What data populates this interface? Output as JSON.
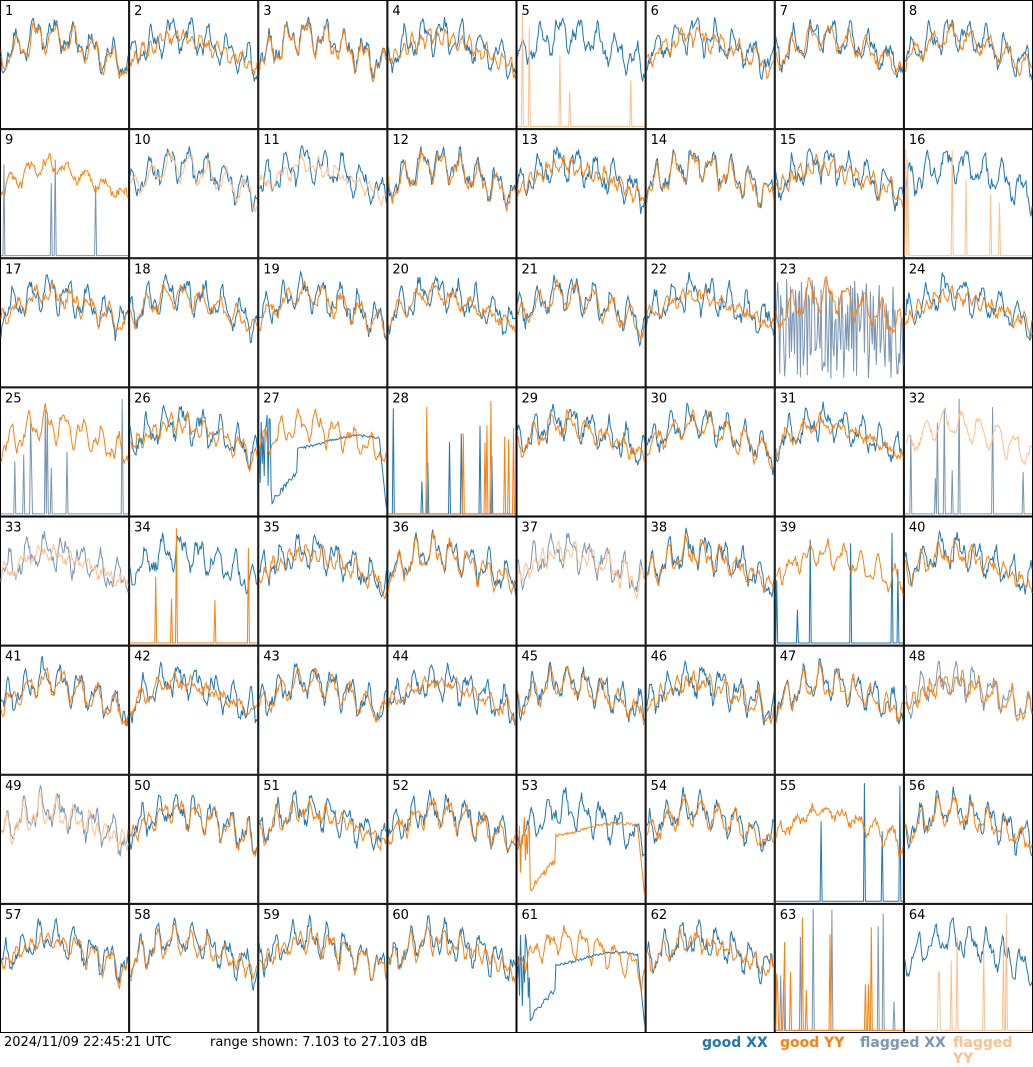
{
  "footer": {
    "timestamp": "2024/11/09 22:45:21 UTC",
    "range_text": "range shown: 7.103 to 27.103 dB"
  },
  "legend": [
    {
      "label": "good XX",
      "color": "#1f77b4"
    },
    {
      "label": "good YY",
      "color": "#ff7f0e"
    },
    {
      "label": "flagged XX",
      "color": "#7a96b3"
    },
    {
      "label": "flagged YY",
      "color": "#ffc08f"
    }
  ],
  "chart_data": {
    "type": "line",
    "layout": "8x8 small multiples",
    "y_range_db": [
      7.103,
      27.103
    ],
    "grid": false,
    "legend_placement": "bottom-right",
    "panels": [
      {
        "id": 1,
        "x": "good",
        "y": "good",
        "kind": "normal"
      },
      {
        "id": 2,
        "x": "good",
        "y": "good",
        "kind": "normal"
      },
      {
        "id": 3,
        "x": "good",
        "y": "good",
        "kind": "normal"
      },
      {
        "id": 4,
        "x": "good",
        "y": "good",
        "kind": "normal"
      },
      {
        "id": 5,
        "x": "good",
        "y": "flagged",
        "kind": "y-spiky"
      },
      {
        "id": 6,
        "x": "good",
        "y": "good",
        "kind": "normal"
      },
      {
        "id": 7,
        "x": "good",
        "y": "good",
        "kind": "normal"
      },
      {
        "id": 8,
        "x": "good",
        "y": "good",
        "kind": "normal"
      },
      {
        "id": 9,
        "x": "flagged",
        "y": "good",
        "kind": "x-spiky"
      },
      {
        "id": 10,
        "x": "good",
        "y": "flagged",
        "kind": "normal"
      },
      {
        "id": 11,
        "x": "good",
        "y": "flagged",
        "kind": "normal"
      },
      {
        "id": 12,
        "x": "good",
        "y": "good",
        "kind": "normal"
      },
      {
        "id": 13,
        "x": "good",
        "y": "good",
        "kind": "normal"
      },
      {
        "id": 14,
        "x": "good",
        "y": "good",
        "kind": "normal"
      },
      {
        "id": 15,
        "x": "good",
        "y": "good",
        "kind": "normal"
      },
      {
        "id": 16,
        "x": "good",
        "y": "flagged",
        "kind": "y-spiky"
      },
      {
        "id": 17,
        "x": "good",
        "y": "good",
        "kind": "normal"
      },
      {
        "id": 18,
        "x": "good",
        "y": "good",
        "kind": "normal"
      },
      {
        "id": 19,
        "x": "good",
        "y": "good",
        "kind": "normal"
      },
      {
        "id": 20,
        "x": "good",
        "y": "good",
        "kind": "normal"
      },
      {
        "id": 21,
        "x": "good",
        "y": "good",
        "kind": "normal"
      },
      {
        "id": 22,
        "x": "good",
        "y": "good",
        "kind": "normal"
      },
      {
        "id": 23,
        "x": "flagged",
        "y": "good",
        "kind": "x-noisy"
      },
      {
        "id": 24,
        "x": "good",
        "y": "good",
        "kind": "normal"
      },
      {
        "id": 25,
        "x": "flagged",
        "y": "good",
        "kind": "x-spiky"
      },
      {
        "id": 26,
        "x": "good",
        "y": "good",
        "kind": "normal"
      },
      {
        "id": 27,
        "x": "good",
        "y": "good",
        "kind": "x-bathtub"
      },
      {
        "id": 28,
        "x": "good",
        "y": "good",
        "kind": "both-spiky"
      },
      {
        "id": 29,
        "x": "good",
        "y": "good",
        "kind": "normal"
      },
      {
        "id": 30,
        "x": "good",
        "y": "good",
        "kind": "normal"
      },
      {
        "id": 31,
        "x": "good",
        "y": "good",
        "kind": "normal"
      },
      {
        "id": 32,
        "x": "flagged",
        "y": "flagged",
        "kind": "x-spiky"
      },
      {
        "id": 33,
        "x": "flagged",
        "y": "flagged",
        "kind": "normal"
      },
      {
        "id": 34,
        "x": "good",
        "y": "good",
        "kind": "y-spiky"
      },
      {
        "id": 35,
        "x": "good",
        "y": "good",
        "kind": "normal"
      },
      {
        "id": 36,
        "x": "good",
        "y": "good",
        "kind": "normal"
      },
      {
        "id": 37,
        "x": "flagged",
        "y": "flagged",
        "kind": "normal"
      },
      {
        "id": 38,
        "x": "good",
        "y": "good",
        "kind": "normal"
      },
      {
        "id": 39,
        "x": "good",
        "y": "good",
        "kind": "x-spiky"
      },
      {
        "id": 40,
        "x": "good",
        "y": "good",
        "kind": "normal"
      },
      {
        "id": 41,
        "x": "good",
        "y": "good",
        "kind": "normal"
      },
      {
        "id": 42,
        "x": "good",
        "y": "good",
        "kind": "normal"
      },
      {
        "id": 43,
        "x": "good",
        "y": "good",
        "kind": "normal"
      },
      {
        "id": 44,
        "x": "good",
        "y": "good",
        "kind": "normal"
      },
      {
        "id": 45,
        "x": "good",
        "y": "good",
        "kind": "normal"
      },
      {
        "id": 46,
        "x": "good",
        "y": "good",
        "kind": "normal"
      },
      {
        "id": 47,
        "x": "good",
        "y": "good",
        "kind": "normal"
      },
      {
        "id": 48,
        "x": "flagged",
        "y": "good",
        "kind": "normal"
      },
      {
        "id": 49,
        "x": "flagged",
        "y": "flagged",
        "kind": "normal"
      },
      {
        "id": 50,
        "x": "good",
        "y": "good",
        "kind": "normal"
      },
      {
        "id": 51,
        "x": "good",
        "y": "good",
        "kind": "normal"
      },
      {
        "id": 52,
        "x": "good",
        "y": "good",
        "kind": "normal"
      },
      {
        "id": 53,
        "x": "good",
        "y": "good",
        "kind": "y-bathtub"
      },
      {
        "id": 54,
        "x": "good",
        "y": "good",
        "kind": "normal"
      },
      {
        "id": 55,
        "x": "good",
        "y": "good",
        "kind": "x-spiky"
      },
      {
        "id": 56,
        "x": "good",
        "y": "good",
        "kind": "normal"
      },
      {
        "id": 57,
        "x": "good",
        "y": "good",
        "kind": "normal"
      },
      {
        "id": 58,
        "x": "good",
        "y": "good",
        "kind": "normal"
      },
      {
        "id": 59,
        "x": "good",
        "y": "good",
        "kind": "normal"
      },
      {
        "id": 60,
        "x": "good",
        "y": "good",
        "kind": "normal"
      },
      {
        "id": 61,
        "x": "good",
        "y": "good",
        "kind": "x-bathtub"
      },
      {
        "id": 62,
        "x": "good",
        "y": "good",
        "kind": "normal"
      },
      {
        "id": 63,
        "x": "flagged",
        "y": "good",
        "kind": "both-spiky"
      },
      {
        "id": 64,
        "x": "good",
        "y": "flagged",
        "kind": "y-spiky"
      }
    ]
  }
}
